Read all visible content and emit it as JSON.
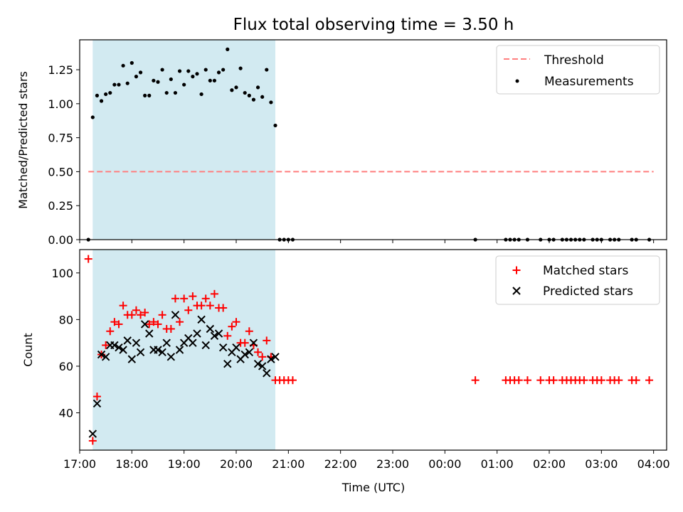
{
  "colors": {
    "shade": "#add8e6",
    "threshold": "#ff7f7f",
    "measurement": "#000000",
    "matched": "#ff0000",
    "predicted": "#000000"
  },
  "chart_data": [
    {
      "panel": "top",
      "type": "scatter",
      "title": "Flux total observing time = 3.50 h",
      "xlabel": "",
      "ylabel": "Matched/Predicted stars",
      "xlim": [
        "17:00",
        "04:15"
      ],
      "ylim": [
        0.0,
        1.47
      ],
      "yticks": [
        "0.00",
        "0.25",
        "0.50",
        "0.75",
        "1.00",
        "1.25"
      ],
      "grid": false,
      "legend_position": "upper right",
      "shaded_interval": [
        "17:15",
        "20:45"
      ],
      "threshold_line": {
        "name": "Threshold",
        "value": 0.5,
        "x_range": [
          "17:10",
          "04:00"
        ],
        "style": "dashed"
      },
      "legend": [
        {
          "label": "Threshold",
          "marker": "dashed-line",
          "color": "#ff7f7f"
        },
        {
          "label": "Measurements",
          "marker": "dot",
          "color": "#000000"
        }
      ],
      "series": [
        {
          "name": "Measurements",
          "x": [
            "17:10",
            "17:15",
            "17:20",
            "17:25",
            "17:30",
            "17:35",
            "17:40",
            "17:45",
            "17:50",
            "17:55",
            "18:00",
            "18:05",
            "18:10",
            "18:15",
            "18:20",
            "18:25",
            "18:30",
            "18:35",
            "18:40",
            "18:45",
            "18:50",
            "18:55",
            "19:00",
            "19:05",
            "19:10",
            "19:15",
            "19:20",
            "19:25",
            "19:30",
            "19:35",
            "19:40",
            "19:45",
            "19:50",
            "19:55",
            "20:00",
            "20:05",
            "20:10",
            "20:15",
            "20:20",
            "20:25",
            "20:30",
            "20:35",
            "20:40",
            "20:45",
            "20:50",
            "20:55",
            "21:00",
            "21:05",
            "00:35",
            "01:10",
            "01:15",
            "01:20",
            "01:25",
            "01:35",
            "01:50",
            "02:00",
            "02:05",
            "02:15",
            "02:20",
            "02:25",
            "02:30",
            "02:35",
            "02:40",
            "02:50",
            "02:55",
            "03:00",
            "03:10",
            "03:15",
            "03:20",
            "03:35",
            "03:40",
            "03:55"
          ],
          "y": [
            0.0,
            0.9,
            1.06,
            1.02,
            1.07,
            1.08,
            1.14,
            1.14,
            1.28,
            1.15,
            1.3,
            1.2,
            1.23,
            1.06,
            1.06,
            1.17,
            1.16,
            1.25,
            1.08,
            1.18,
            1.08,
            1.24,
            1.14,
            1.24,
            1.2,
            1.22,
            1.07,
            1.25,
            1.17,
            1.17,
            1.23,
            1.25,
            1.4,
            1.1,
            1.12,
            1.26,
            1.08,
            1.06,
            1.03,
            1.12,
            1.05,
            1.25,
            1.01,
            0.84,
            0.0,
            0.0,
            0.0,
            0.0,
            0.0,
            0.0,
            0.0,
            0.0,
            0.0,
            0.0,
            0.0,
            0.0,
            0.0,
            0.0,
            0.0,
            0.0,
            0.0,
            0.0,
            0.0,
            0.0,
            0.0,
            0.0,
            0.0,
            0.0,
            0.0,
            0.0,
            0.0,
            0.0
          ]
        }
      ]
    },
    {
      "panel": "bottom",
      "type": "scatter",
      "xlabel": "Time (UTC)",
      "ylabel": "Count",
      "xlim": [
        "17:00",
        "04:15"
      ],
      "ylim": [
        24,
        110
      ],
      "yticks": [
        "40",
        "60",
        "80",
        "100"
      ],
      "xticks": [
        "17:00",
        "18:00",
        "19:00",
        "20:00",
        "21:00",
        "22:00",
        "23:00",
        "00:00",
        "01:00",
        "02:00",
        "03:00",
        "04:00"
      ],
      "grid": false,
      "legend_position": "upper right",
      "shaded_interval": [
        "17:15",
        "20:45"
      ],
      "legend": [
        {
          "label": "Matched stars",
          "marker": "plus",
          "color": "#ff0000"
        },
        {
          "label": "Predicted stars",
          "marker": "x",
          "color": "#000000"
        }
      ],
      "series": [
        {
          "name": "Matched stars",
          "marker": "plus",
          "x": [
            "17:10",
            "17:15",
            "17:20",
            "17:25",
            "17:30",
            "17:35",
            "17:40",
            "17:45",
            "17:50",
            "17:55",
            "18:00",
            "18:05",
            "18:10",
            "18:15",
            "18:20",
            "18:25",
            "18:30",
            "18:35",
            "18:40",
            "18:45",
            "18:50",
            "18:55",
            "19:00",
            "19:05",
            "19:10",
            "19:15",
            "19:20",
            "19:25",
            "19:30",
            "19:35",
            "19:40",
            "19:45",
            "19:50",
            "19:55",
            "20:00",
            "20:05",
            "20:10",
            "20:15",
            "20:20",
            "20:25",
            "20:30",
            "20:35",
            "20:40",
            "20:45",
            "20:50",
            "20:55",
            "21:00",
            "21:05",
            "00:35",
            "01:10",
            "01:15",
            "01:20",
            "01:25",
            "01:35",
            "01:50",
            "02:00",
            "02:05",
            "02:15",
            "02:20",
            "02:25",
            "02:30",
            "02:35",
            "02:40",
            "02:50",
            "02:55",
            "03:00",
            "03:10",
            "03:15",
            "03:20",
            "03:35",
            "03:40",
            "03:55"
          ],
          "y": [
            106,
            28,
            47,
            65,
            69,
            75,
            79,
            78,
            86,
            82,
            82,
            84,
            82,
            83,
            78,
            79,
            78,
            82,
            76,
            76,
            89,
            79,
            89,
            84,
            90,
            86,
            86,
            89,
            86,
            91,
            85,
            85,
            73,
            77,
            79,
            70,
            70,
            75,
            69,
            66,
            64,
            71,
            64,
            54,
            54,
            54,
            54,
            54,
            54,
            54,
            54,
            54,
            54,
            54,
            54,
            54,
            54,
            54,
            54,
            54,
            54,
            54,
            54,
            54,
            54,
            54,
            54,
            54,
            54,
            54,
            54,
            54
          ]
        },
        {
          "name": "Predicted stars",
          "marker": "x",
          "x": [
            "17:15",
            "17:20",
            "17:25",
            "17:30",
            "17:35",
            "17:40",
            "17:45",
            "17:50",
            "17:55",
            "18:00",
            "18:05",
            "18:10",
            "18:15",
            "18:20",
            "18:25",
            "18:30",
            "18:35",
            "18:40",
            "18:45",
            "18:50",
            "18:55",
            "19:00",
            "19:05",
            "19:10",
            "19:15",
            "19:20",
            "19:25",
            "19:30",
            "19:35",
            "19:40",
            "19:45",
            "19:50",
            "19:55",
            "20:00",
            "20:05",
            "20:10",
            "20:15",
            "20:20",
            "20:25",
            "20:30",
            "20:35",
            "20:40",
            "20:45"
          ],
          "y": [
            31,
            44,
            65,
            64,
            69,
            69,
            68,
            67,
            71,
            63,
            70,
            66,
            78,
            74,
            67,
            67,
            66,
            70,
            64,
            82,
            67,
            70,
            72,
            70,
            74,
            80,
            69,
            76,
            73,
            74,
            68,
            61,
            66,
            68,
            63,
            65,
            66,
            70,
            61,
            60,
            57,
            63,
            64
          ]
        }
      ]
    }
  ]
}
